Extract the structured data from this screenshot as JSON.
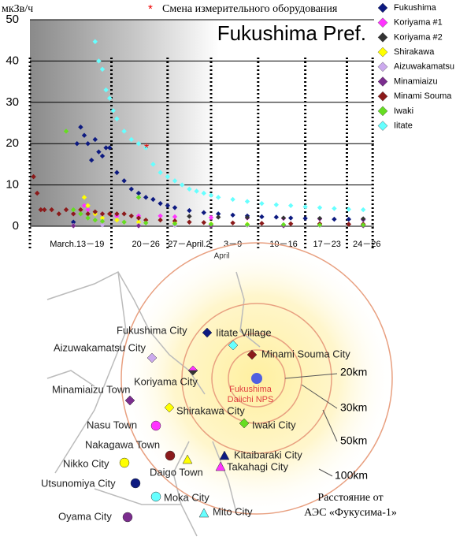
{
  "chart_data": {
    "type": "scatter",
    "title": "Fukushima Pref.",
    "y_unit": "мкЗв/ч",
    "note_symbol": "*",
    "note": "Смена измерительного оборудования",
    "change_marker": {
      "x": 16.1,
      "y": 19.3
    },
    "xlabel": "April",
    "xlim": [
      0,
      47.5
    ],
    "xticks": [
      {
        "value": 6.5,
        "label": "March.13－19"
      },
      {
        "value": 16,
        "label": "20－26"
      },
      {
        "value": 22,
        "label": "27－April.2"
      },
      {
        "value": 28,
        "label": "3－9"
      },
      {
        "value": 35,
        "label": "10－16"
      },
      {
        "value": 41,
        "label": "17－23"
      },
      {
        "value": 46.5,
        "label": "24－26"
      }
    ],
    "ylim": [
      0,
      50
    ],
    "yticks": [
      0,
      10,
      20,
      30,
      40,
      50
    ],
    "grid": true,
    "legend": "right",
    "series": [
      {
        "name": "Fukushima",
        "color": "#0d1a80",
        "x": [
          6,
          6.5,
          7,
          7.5,
          8,
          8.5,
          9,
          9.5,
          10,
          10.5,
          11,
          12,
          13,
          14,
          15,
          16,
          17,
          18,
          19,
          20,
          22,
          24,
          26,
          28,
          30,
          32,
          34,
          36,
          38,
          40,
          42,
          44,
          46
        ],
        "values": [
          1,
          20,
          24,
          22,
          20,
          16,
          21,
          18,
          17,
          19,
          19,
          13,
          11,
          9,
          8,
          7,
          6.5,
          5.5,
          5,
          4.5,
          3.8,
          3.3,
          3,
          2.7,
          2.5,
          2.3,
          2.2,
          2,
          1.9,
          1.8,
          1.7,
          1.7,
          1.6
        ]
      },
      {
        "name": "Koriyama #1",
        "color": "#ff33ff",
        "x": [
          6,
          7,
          7.5,
          8,
          9,
          10,
          12,
          15,
          18,
          20,
          25,
          30,
          35,
          40,
          46
        ],
        "values": [
          3,
          4,
          5,
          4,
          3,
          3,
          2.5,
          2.5,
          2.5,
          2.3,
          2.1,
          2,
          1.9,
          1.8,
          1.7
        ]
      },
      {
        "name": "Koriyama #2",
        "color": "#333333",
        "x": [
          22,
          26,
          30,
          35,
          40,
          46
        ],
        "values": [
          2.4,
          2.2,
          2.1,
          2,
          1.9,
          1.8
        ]
      },
      {
        "name": "Shirakawa",
        "color": "#ffff00",
        "x": [
          7,
          7.5,
          8,
          9,
          10,
          12,
          15,
          20,
          25,
          30,
          40,
          46
        ],
        "values": [
          4,
          7,
          5,
          3,
          2,
          1.5,
          1,
          0.8,
          0.6,
          0.5,
          0.4,
          0.4
        ]
      },
      {
        "name": "Aizuwakamatsu",
        "color": "#ccaaee",
        "x": [
          6,
          10,
          15,
          20,
          30,
          40,
          46
        ],
        "values": [
          0.2,
          0.3,
          0.2,
          0.2,
          0.2,
          0.2,
          0.2
        ]
      },
      {
        "name": "Minamiaizu",
        "color": "#7b2d8e",
        "x": [
          6,
          15,
          25,
          35,
          46
        ],
        "values": [
          0.1,
          0.1,
          0.1,
          0.1,
          0.1
        ]
      },
      {
        "name": "Minami Souma",
        "color": "#8b1a1a",
        "x": [
          0.5,
          1,
          1.5,
          2,
          3,
          4,
          5,
          6,
          7,
          8,
          9,
          10,
          11,
          12,
          13,
          14,
          15,
          16,
          18,
          20,
          22,
          24,
          28,
          32,
          36,
          40,
          44,
          46
        ],
        "values": [
          12,
          8,
          4,
          4,
          4,
          3,
          4,
          3,
          4,
          3,
          3.5,
          3,
          3,
          3,
          3,
          2.5,
          2,
          1.5,
          1.5,
          1.3,
          1,
          0.9,
          0.8,
          0.7,
          0.6,
          0.6,
          0.5,
          0.5
        ]
      },
      {
        "name": "Iwaki",
        "color": "#66dd22",
        "x": [
          5,
          6,
          7,
          8,
          9,
          10,
          13,
          15,
          16,
          20,
          25,
          30,
          35,
          40,
          46
        ],
        "values": [
          23,
          4,
          3,
          2,
          1.5,
          1.2,
          1,
          7,
          0.8,
          0.6,
          0.5,
          0.4,
          0.4,
          0.3,
          0.3
        ]
      },
      {
        "name": "Iitate",
        "color": "#66ffff",
        "x": [
          9,
          9.5,
          10,
          10.5,
          11,
          11.5,
          12,
          13,
          14,
          15,
          16,
          17,
          18,
          19,
          20,
          21,
          22,
          23,
          24,
          25,
          26,
          28,
          30,
          32,
          34,
          36,
          38,
          40,
          42,
          44,
          46
        ],
        "values": [
          44.7,
          40,
          38,
          33,
          31,
          28,
          26,
          23,
          21,
          20,
          19,
          15,
          13,
          12,
          11,
          10,
          9,
          8.5,
          8,
          7.5,
          7,
          6.5,
          6,
          5.5,
          5.2,
          5,
          4.7,
          4.5,
          4.3,
          4.1,
          4
        ]
      }
    ]
  },
  "map": {
    "cities": [
      "Fukushima City",
      "Iitate Village",
      "Aizuwakamatsu City",
      "Minami Souma City",
      "Koriyama City",
      "Minamiaizu Town",
      "Shirakawa City",
      "Iwaki City",
      "Nasu Town",
      "Nakagawa Town",
      "Daigo Town",
      "Kitaibaraki City",
      "Takahagi City",
      "Nikko City",
      "Utsunomiya City",
      "Moka City",
      "Mito City",
      "Oyama City"
    ],
    "rings": [
      "20km",
      "30km",
      "50km",
      "100km"
    ],
    "plant": [
      "Fukushima",
      "Daiichi NPS"
    ],
    "caption": [
      "Расстояние от",
      "АЭС «Фукусима-1»"
    ]
  }
}
